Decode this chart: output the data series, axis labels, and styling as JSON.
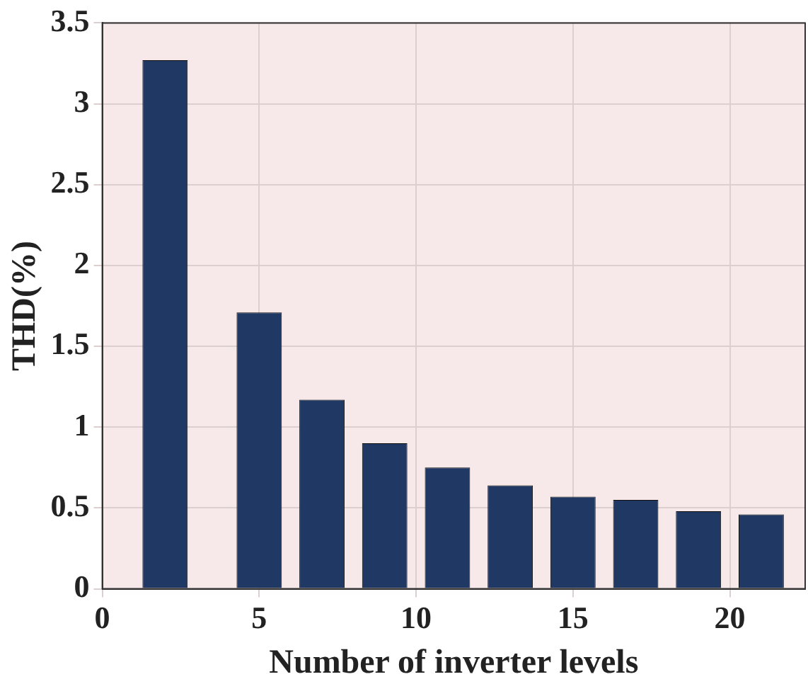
{
  "chart_data": {
    "type": "bar",
    "xlabel": "Number of inverter levels",
    "ylabel": "THD(%)",
    "x": [
      2,
      5,
      7,
      9,
      11,
      13,
      15,
      17,
      19,
      21
    ],
    "values": [
      3.27,
      1.71,
      1.17,
      0.9,
      0.75,
      0.64,
      0.57,
      0.55,
      0.48,
      0.46
    ],
    "color": "#1f3864",
    "xlim": [
      0,
      22.4
    ],
    "xticks": [
      0,
      5,
      10,
      15,
      20
    ],
    "ylim": [
      0,
      3.5
    ],
    "yticks": [
      0,
      0.5,
      1,
      1.5,
      2,
      2.5,
      3,
      3.5
    ],
    "grid": true
  }
}
